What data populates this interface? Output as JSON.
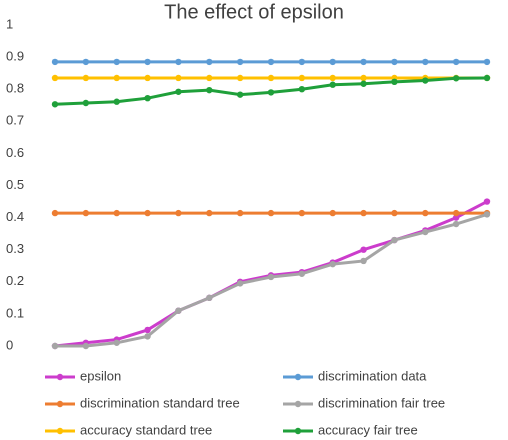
{
  "chart_data": {
    "type": "line",
    "title": "The effect of epsilon",
    "categories": [
      null,
      null,
      null,
      null,
      null,
      null,
      null,
      null,
      null,
      null,
      null,
      null,
      null,
      null,
      null
    ],
    "ylim": [
      0,
      1
    ],
    "yticks": [
      0,
      0.1,
      0.2,
      0.3,
      0.4,
      0.5,
      0.6,
      0.7,
      0.8,
      0.9,
      1
    ],
    "grid": false,
    "legend": "bottom",
    "series": [
      {
        "name": "epsilon",
        "color": "#cc3ccc",
        "values": [
          0,
          0.01,
          0.02,
          0.05,
          0.11,
          0.15,
          0.2,
          0.22,
          0.23,
          0.26,
          0.3,
          0.33,
          0.36,
          0.4,
          0.45
        ]
      },
      {
        "name": "discrimination data",
        "color": "#5b9bd5",
        "values": [
          0.885,
          0.885,
          0.885,
          0.885,
          0.885,
          0.885,
          0.885,
          0.885,
          0.885,
          0.885,
          0.885,
          0.885,
          0.885,
          0.885,
          0.885
        ]
      },
      {
        "name": "discrimination standard tree",
        "color": "#ed7d31",
        "values": [
          0.414,
          0.414,
          0.414,
          0.414,
          0.414,
          0.414,
          0.414,
          0.414,
          0.414,
          0.414,
          0.414,
          0.414,
          0.414,
          0.414,
          0.414
        ]
      },
      {
        "name": "discrimination fair tree",
        "color": "#a5a5a5",
        "values": [
          0,
          0,
          0.01,
          0.03,
          0.11,
          0.15,
          0.195,
          0.215,
          0.225,
          0.255,
          0.265,
          0.33,
          0.355,
          0.38,
          0.41
        ]
      },
      {
        "name": "accuracy standard tree",
        "color": "#ffc000",
        "values": [
          0.835,
          0.835,
          0.835,
          0.835,
          0.835,
          0.835,
          0.835,
          0.835,
          0.835,
          0.835,
          0.835,
          0.835,
          0.835,
          0.835,
          0.835
        ]
      },
      {
        "name": "accuracy fair tree",
        "color": "#1fa03a",
        "values": [
          0.753,
          0.757,
          0.761,
          0.772,
          0.792,
          0.797,
          0.783,
          0.79,
          0.8,
          0.814,
          0.817,
          0.823,
          0.827,
          0.834,
          0.835
        ]
      }
    ]
  }
}
